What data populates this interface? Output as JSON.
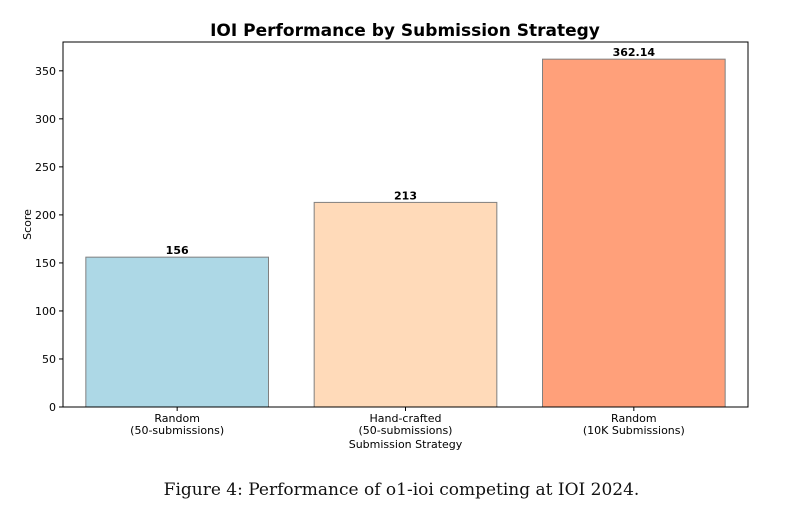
{
  "chart_data": {
    "type": "bar",
    "title": "IOI Performance by Submission Strategy",
    "xlabel": "Submission Strategy",
    "ylabel": "Score",
    "categories": [
      [
        "Random",
        "(50-submissions)"
      ],
      [
        "Hand-crafted",
        "(50-submissions)"
      ],
      [
        "Random",
        "(10K Submissions)"
      ]
    ],
    "values": [
      156,
      213,
      362.14
    ],
    "data_labels": [
      "156",
      "213",
      "362.14"
    ],
    "colors": [
      "#add8e6",
      "#ffdab9",
      "#ffa07a"
    ],
    "ylim": [
      0,
      380
    ],
    "yticks": [
      0,
      50,
      100,
      150,
      200,
      250,
      300,
      350
    ],
    "grid": false
  },
  "caption": "Figure 4: Performance of o1-ioi competing at IOI 2024."
}
